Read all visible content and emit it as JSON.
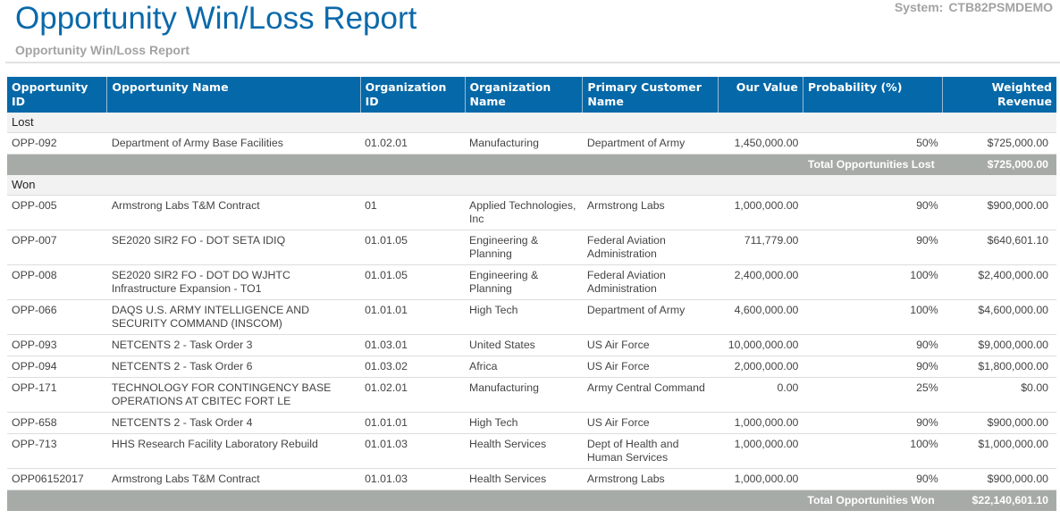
{
  "header": {
    "title": "Opportunity Win/Loss Report",
    "subtitle": "Opportunity Win/Loss Report",
    "system_label": "System:",
    "system_value": "CTB82PSMDEMO"
  },
  "columns": [
    "Opportunity ID",
    "Opportunity Name",
    "Organization ID",
    "Organization Name",
    "Primary Customer Name",
    "Our Value",
    "Probability (%)",
    "Weighted Revenue"
  ],
  "groups": [
    {
      "label": "Lost",
      "total_label": "Total Opportunities Lost",
      "total": "$725,000.00",
      "rows": [
        [
          "OPP-092",
          "Department of Army Base Facilities",
          "01.02.01",
          "Manufacturing",
          "Department of Army",
          "1,450,000.00",
          "50%",
          "$725,000.00"
        ]
      ]
    },
    {
      "label": "Won",
      "total_label": "Total Opportunities Won",
      "total": "$22,140,601.10",
      "rows": [
        [
          "OPP-005",
          "Armstrong Labs T&M Contract",
          "01",
          "Applied Technologies, Inc",
          "Armstrong Labs",
          "1,000,000.00",
          "90%",
          "$900,000.00"
        ],
        [
          "OPP-007",
          "SE2020 SIR2 FO - DOT SETA IDIQ",
          "01.01.05",
          "Engineering & Planning",
          "Federal Aviation Administration",
          "711,779.00",
          "90%",
          "$640,601.10"
        ],
        [
          "OPP-008",
          "SE2020 SIR2 FO - DOT DO WJHTC Infrastructure Expansion - TO1",
          "01.01.05",
          "Engineering & Planning",
          "Federal Aviation Administration",
          "2,400,000.00",
          "100%",
          "$2,400,000.00"
        ],
        [
          "OPP-066",
          "DAQS U.S. ARMY INTELLIGENCE AND SECURITY COMMAND (INSCOM)",
          "01.01.01",
          "High Tech",
          "Department of Army",
          "4,600,000.00",
          "100%",
          "$4,600,000.00"
        ],
        [
          "OPP-093",
          "NETCENTS 2 - Task Order 3",
          "01.03.01",
          "United States",
          "US Air Force",
          "10,000,000.00",
          "90%",
          "$9,000,000.00"
        ],
        [
          "OPP-094",
          "NETCENTS 2 - Task Order 6",
          "01.03.02",
          "Africa",
          "US Air Force",
          "2,000,000.00",
          "90%",
          "$1,800,000.00"
        ],
        [
          "OPP-171",
          "TECHNOLOGY FOR CONTINGENCY BASE OPERATIONS AT CBITEC FORT LE",
          "01.02.01",
          "Manufacturing",
          "Army Central Command",
          "0.00",
          "25%",
          "$0.00"
        ],
        [
          "OPP-658",
          "NETCENTS 2 - Task Order 4",
          "01.01.01",
          "High Tech",
          "US Air Force",
          "1,000,000.00",
          "90%",
          "$900,000.00"
        ],
        [
          "OPP-713",
          "HHS Research Facility Laboratory Rebuild",
          "01.01.03",
          "Health Services",
          "Dept of Health and Human Services",
          "1,000,000.00",
          "100%",
          "$1,000,000.00"
        ],
        [
          "OPP06152017",
          "Armstrong Labs T&M Contract",
          "01.01.03",
          "Health Services",
          "Armstrong Labs",
          "1,000,000.00",
          "90%",
          "$900,000.00"
        ]
      ]
    }
  ]
}
